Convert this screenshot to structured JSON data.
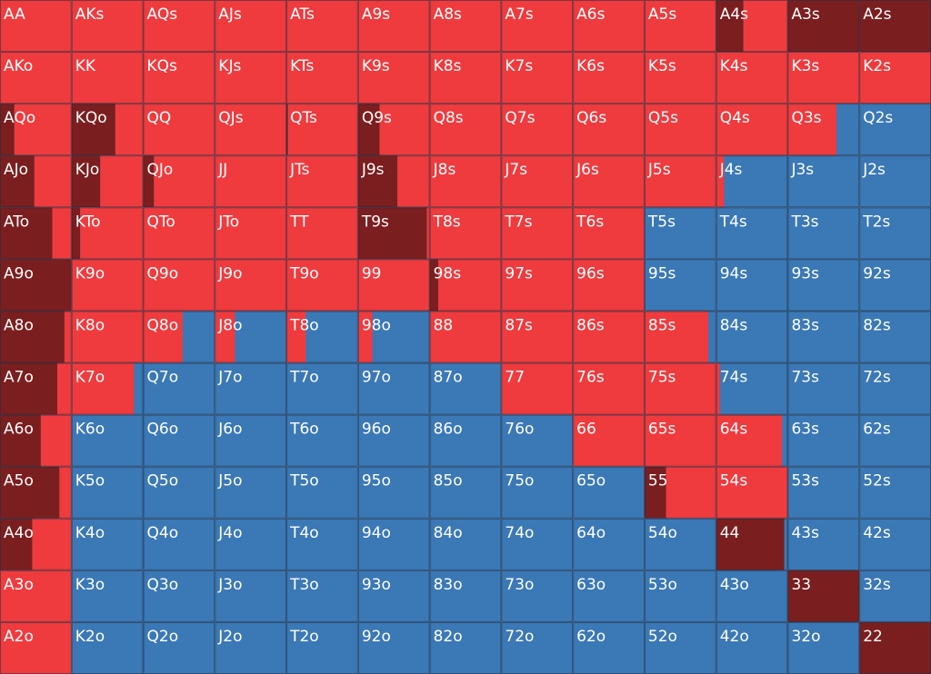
{
  "colors": {
    "dark": "#7b1e1f",
    "red": "#ef3b3e",
    "rest": "#3b78b6",
    "line": "#22303f",
    "text": "#ffffff"
  },
  "grid": {
    "rows": [
      [
        {
          "hand": "AA",
          "dark": 0,
          "red": 100
        },
        {
          "hand": "AKs",
          "dark": 0,
          "red": 100
        },
        {
          "hand": "AQs",
          "dark": 0,
          "red": 100
        },
        {
          "hand": "AJs",
          "dark": 0,
          "red": 100
        },
        {
          "hand": "ATs",
          "dark": 0,
          "red": 100
        },
        {
          "hand": "A9s",
          "dark": 0,
          "red": 100
        },
        {
          "hand": "A8s",
          "dark": 0,
          "red": 100
        },
        {
          "hand": "A7s",
          "dark": 0,
          "red": 100
        },
        {
          "hand": "A6s",
          "dark": 0,
          "red": 100
        },
        {
          "hand": "A5s",
          "dark": 0,
          "red": 100
        },
        {
          "hand": "A4s",
          "dark": 38,
          "red": 62
        },
        {
          "hand": "A3s",
          "dark": 100,
          "red": 0
        },
        {
          "hand": "A2s",
          "dark": 100,
          "red": 0
        }
      ],
      [
        {
          "hand": "AKo",
          "dark": 0,
          "red": 100
        },
        {
          "hand": "KK",
          "dark": 0,
          "red": 100
        },
        {
          "hand": "KQs",
          "dark": 0,
          "red": 100
        },
        {
          "hand": "KJs",
          "dark": 0,
          "red": 100
        },
        {
          "hand": "KTs",
          "dark": 0,
          "red": 100
        },
        {
          "hand": "K9s",
          "dark": 0,
          "red": 100
        },
        {
          "hand": "K8s",
          "dark": 0,
          "red": 100
        },
        {
          "hand": "K7s",
          "dark": 0,
          "red": 100
        },
        {
          "hand": "K6s",
          "dark": 0,
          "red": 100
        },
        {
          "hand": "K5s",
          "dark": 0,
          "red": 100
        },
        {
          "hand": "K4s",
          "dark": 0,
          "red": 100
        },
        {
          "hand": "K3s",
          "dark": 0,
          "red": 100
        },
        {
          "hand": "K2s",
          "dark": 0,
          "red": 100
        }
      ],
      [
        {
          "hand": "AQo",
          "dark": 20,
          "red": 80
        },
        {
          "hand": "KQo",
          "dark": 61,
          "red": 39
        },
        {
          "hand": "QQ",
          "dark": 0,
          "red": 100
        },
        {
          "hand": "QJs",
          "dark": 0,
          "red": 100
        },
        {
          "hand": "QTs",
          "dark": 2,
          "red": 98
        },
        {
          "hand": "Q9s",
          "dark": 30,
          "red": 70
        },
        {
          "hand": "Q8s",
          "dark": 0,
          "red": 100
        },
        {
          "hand": "Q7s",
          "dark": 0,
          "red": 100
        },
        {
          "hand": "Q6s",
          "dark": 0,
          "red": 100
        },
        {
          "hand": "Q5s",
          "dark": 0,
          "red": 100
        },
        {
          "hand": "Q4s",
          "dark": 0,
          "red": 100
        },
        {
          "hand": "Q3s",
          "dark": 0,
          "red": 68
        },
        {
          "hand": "Q2s",
          "dark": 0,
          "red": 0
        }
      ],
      [
        {
          "hand": "AJo",
          "dark": 48,
          "red": 52
        },
        {
          "hand": "KJo",
          "dark": 40,
          "red": 60
        },
        {
          "hand": "QJo",
          "dark": 15,
          "red": 85
        },
        {
          "hand": "JJ",
          "dark": 0,
          "red": 100
        },
        {
          "hand": "JTs",
          "dark": 0,
          "red": 100
        },
        {
          "hand": "J9s",
          "dark": 55,
          "red": 45
        },
        {
          "hand": "J8s",
          "dark": 0,
          "red": 100
        },
        {
          "hand": "J7s",
          "dark": 0,
          "red": 100
        },
        {
          "hand": "J6s",
          "dark": 0,
          "red": 100
        },
        {
          "hand": "J5s",
          "dark": 0,
          "red": 100
        },
        {
          "hand": "J4s",
          "dark": 0,
          "red": 11
        },
        {
          "hand": "J3s",
          "dark": 0,
          "red": 0
        },
        {
          "hand": "J2s",
          "dark": 0,
          "red": 0
        }
      ],
      [
        {
          "hand": "ATo",
          "dark": 73,
          "red": 27
        },
        {
          "hand": "KTo",
          "dark": 12,
          "red": 88
        },
        {
          "hand": "QTo",
          "dark": 0,
          "red": 100
        },
        {
          "hand": "JTo",
          "dark": 0,
          "red": 100
        },
        {
          "hand": "TT",
          "dark": 0,
          "red": 100
        },
        {
          "hand": "T9s",
          "dark": 96,
          "red": 4
        },
        {
          "hand": "T8s",
          "dark": 0,
          "red": 100
        },
        {
          "hand": "T7s",
          "dark": 0,
          "red": 100
        },
        {
          "hand": "T6s",
          "dark": 0,
          "red": 100
        },
        {
          "hand": "T5s",
          "dark": 0,
          "red": 0
        },
        {
          "hand": "T4s",
          "dark": 0,
          "red": 0
        },
        {
          "hand": "T3s",
          "dark": 0,
          "red": 0
        },
        {
          "hand": "T2s",
          "dark": 0,
          "red": 0
        }
      ],
      [
        {
          "hand": "A9o",
          "dark": 100,
          "red": 0
        },
        {
          "hand": "K9o",
          "dark": 0,
          "red": 100
        },
        {
          "hand": "Q9o",
          "dark": 0,
          "red": 100
        },
        {
          "hand": "J9o",
          "dark": 0,
          "red": 100
        },
        {
          "hand": "T9o",
          "dark": 0,
          "red": 100
        },
        {
          "hand": "99",
          "dark": 0,
          "red": 100
        },
        {
          "hand": "98s",
          "dark": 12,
          "red": 88
        },
        {
          "hand": "97s",
          "dark": 0,
          "red": 100
        },
        {
          "hand": "96s",
          "dark": 0,
          "red": 100
        },
        {
          "hand": "95s",
          "dark": 0,
          "red": 0
        },
        {
          "hand": "94s",
          "dark": 0,
          "red": 0
        },
        {
          "hand": "93s",
          "dark": 0,
          "red": 0
        },
        {
          "hand": "92s",
          "dark": 0,
          "red": 0
        }
      ],
      [
        {
          "hand": "A8o",
          "dark": 90,
          "red": 10
        },
        {
          "hand": "K8o",
          "dark": 0,
          "red": 100
        },
        {
          "hand": "Q8o",
          "dark": 0,
          "red": 55
        },
        {
          "hand": "J8o",
          "dark": 0,
          "red": 28
        },
        {
          "hand": "T8o",
          "dark": 0,
          "red": 27
        },
        {
          "hand": "98o",
          "dark": 0,
          "red": 20
        },
        {
          "hand": "88",
          "dark": 0,
          "red": 100
        },
        {
          "hand": "87s",
          "dark": 0,
          "red": 100
        },
        {
          "hand": "86s",
          "dark": 0,
          "red": 100
        },
        {
          "hand": "85s",
          "dark": 0,
          "red": 89
        },
        {
          "hand": "84s",
          "dark": 0,
          "red": 0
        },
        {
          "hand": "83s",
          "dark": 0,
          "red": 0
        },
        {
          "hand": "82s",
          "dark": 0,
          "red": 0
        }
      ],
      [
        {
          "hand": "A7o",
          "dark": 80,
          "red": 20
        },
        {
          "hand": "K7o",
          "dark": 0,
          "red": 87
        },
        {
          "hand": "Q7o",
          "dark": 0,
          "red": 0
        },
        {
          "hand": "J7o",
          "dark": 0,
          "red": 0
        },
        {
          "hand": "T7o",
          "dark": 0,
          "red": 0
        },
        {
          "hand": "97o",
          "dark": 0,
          "red": 0
        },
        {
          "hand": "87o",
          "dark": 0,
          "red": 0
        },
        {
          "hand": "77",
          "dark": 0,
          "red": 100
        },
        {
          "hand": "76s",
          "dark": 0,
          "red": 100
        },
        {
          "hand": "75s",
          "dark": 0,
          "red": 100
        },
        {
          "hand": "74s",
          "dark": 0,
          "red": 5
        },
        {
          "hand": "73s",
          "dark": 0,
          "red": 0
        },
        {
          "hand": "72s",
          "dark": 0,
          "red": 0
        }
      ],
      [
        {
          "hand": "A6o",
          "dark": 57,
          "red": 43
        },
        {
          "hand": "K6o",
          "dark": 0,
          "red": 0
        },
        {
          "hand": "Q6o",
          "dark": 0,
          "red": 0
        },
        {
          "hand": "J6o",
          "dark": 0,
          "red": 0
        },
        {
          "hand": "T6o",
          "dark": 0,
          "red": 0
        },
        {
          "hand": "96o",
          "dark": 0,
          "red": 0
        },
        {
          "hand": "86o",
          "dark": 0,
          "red": 0
        },
        {
          "hand": "76o",
          "dark": 0,
          "red": 0
        },
        {
          "hand": "66",
          "dark": 0,
          "red": 100
        },
        {
          "hand": "65s",
          "dark": 0,
          "red": 100
        },
        {
          "hand": "64s",
          "dark": 0,
          "red": 92
        },
        {
          "hand": "63s",
          "dark": 0,
          "red": 0
        },
        {
          "hand": "62s",
          "dark": 0,
          "red": 0
        }
      ],
      [
        {
          "hand": "A5o",
          "dark": 83,
          "red": 17
        },
        {
          "hand": "K5o",
          "dark": 0,
          "red": 0
        },
        {
          "hand": "Q5o",
          "dark": 0,
          "red": 0
        },
        {
          "hand": "J5o",
          "dark": 0,
          "red": 0
        },
        {
          "hand": "T5o",
          "dark": 0,
          "red": 0
        },
        {
          "hand": "95o",
          "dark": 0,
          "red": 0
        },
        {
          "hand": "85o",
          "dark": 0,
          "red": 0
        },
        {
          "hand": "75o",
          "dark": 0,
          "red": 0
        },
        {
          "hand": "65o",
          "dark": 0,
          "red": 0
        },
        {
          "hand": "55",
          "dark": 30,
          "red": 70
        },
        {
          "hand": "54s",
          "dark": 0,
          "red": 100
        },
        {
          "hand": "53s",
          "dark": 0,
          "red": 0
        },
        {
          "hand": "52s",
          "dark": 0,
          "red": 0
        }
      ],
      [
        {
          "hand": "A4o",
          "dark": 45,
          "red": 55
        },
        {
          "hand": "K4o",
          "dark": 0,
          "red": 0
        },
        {
          "hand": "Q4o",
          "dark": 0,
          "red": 0
        },
        {
          "hand": "J4o",
          "dark": 0,
          "red": 0
        },
        {
          "hand": "T4o",
          "dark": 0,
          "red": 0
        },
        {
          "hand": "94o",
          "dark": 0,
          "red": 0
        },
        {
          "hand": "84o",
          "dark": 0,
          "red": 0
        },
        {
          "hand": "74o",
          "dark": 0,
          "red": 0
        },
        {
          "hand": "64o",
          "dark": 0,
          "red": 0
        },
        {
          "hand": "54o",
          "dark": 0,
          "red": 0
        },
        {
          "hand": "44",
          "dark": 95,
          "red": 0
        },
        {
          "hand": "43s",
          "dark": 0,
          "red": 0
        },
        {
          "hand": "42s",
          "dark": 0,
          "red": 0
        }
      ],
      [
        {
          "hand": "A3o",
          "dark": 0,
          "red": 100
        },
        {
          "hand": "K3o",
          "dark": 0,
          "red": 0
        },
        {
          "hand": "Q3o",
          "dark": 0,
          "red": 0
        },
        {
          "hand": "J3o",
          "dark": 0,
          "red": 0
        },
        {
          "hand": "T3o",
          "dark": 0,
          "red": 0
        },
        {
          "hand": "93o",
          "dark": 0,
          "red": 0
        },
        {
          "hand": "83o",
          "dark": 0,
          "red": 0
        },
        {
          "hand": "73o",
          "dark": 0,
          "red": 0
        },
        {
          "hand": "63o",
          "dark": 0,
          "red": 0
        },
        {
          "hand": "53o",
          "dark": 0,
          "red": 0
        },
        {
          "hand": "43o",
          "dark": 0,
          "red": 0
        },
        {
          "hand": "33",
          "dark": 100,
          "red": 0
        },
        {
          "hand": "32s",
          "dark": 0,
          "red": 0
        }
      ],
      [
        {
          "hand": "A2o",
          "dark": 0,
          "red": 100
        },
        {
          "hand": "K2o",
          "dark": 0,
          "red": 0
        },
        {
          "hand": "Q2o",
          "dark": 0,
          "red": 0
        },
        {
          "hand": "J2o",
          "dark": 0,
          "red": 0
        },
        {
          "hand": "T2o",
          "dark": 0,
          "red": 0
        },
        {
          "hand": "92o",
          "dark": 0,
          "red": 0
        },
        {
          "hand": "82o",
          "dark": 0,
          "red": 0
        },
        {
          "hand": "72o",
          "dark": 0,
          "red": 0
        },
        {
          "hand": "62o",
          "dark": 0,
          "red": 0
        },
        {
          "hand": "52o",
          "dark": 0,
          "red": 0
        },
        {
          "hand": "42o",
          "dark": 0,
          "red": 0
        },
        {
          "hand": "32o",
          "dark": 0,
          "red": 0
        },
        {
          "hand": "22",
          "dark": 100,
          "red": 0
        }
      ]
    ]
  }
}
